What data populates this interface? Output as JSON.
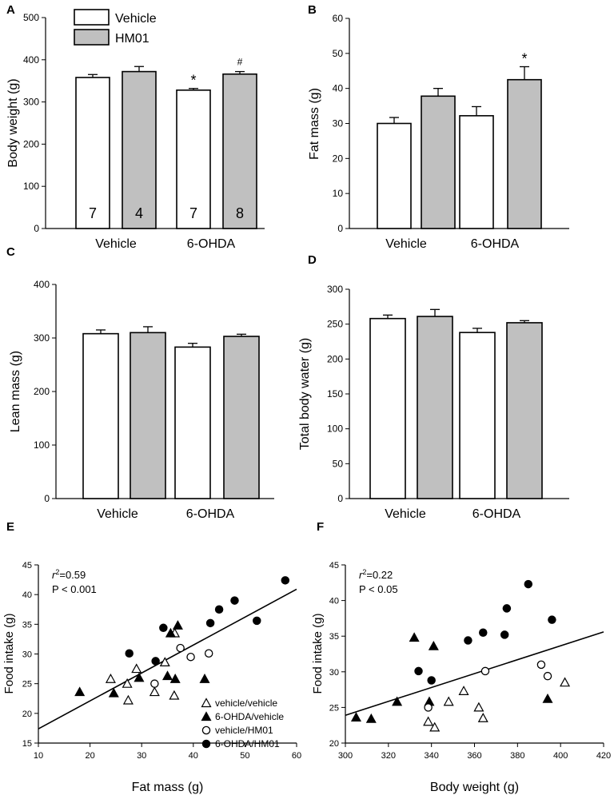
{
  "chart_data": [
    {
      "panel": "A",
      "type": "bar",
      "ylabel": "Body weight (g)",
      "ylim": [
        0,
        500
      ],
      "yticks": [
        0,
        100,
        200,
        300,
        400,
        500
      ],
      "groups": [
        "Vehicle",
        "6-OHDA"
      ],
      "series": [
        {
          "name": "Vehicle",
          "color": "#ffffff",
          "values": [
            358,
            328
          ],
          "errors": [
            7,
            4
          ],
          "n": [
            "7",
            "7"
          ]
        },
        {
          "name": "HM01",
          "color": "#c0c0c0",
          "values": [
            372,
            366
          ],
          "errors": [
            12,
            6
          ],
          "n": [
            "4",
            "8"
          ]
        }
      ],
      "annotations": [
        {
          "text": "*",
          "group": 1,
          "series": 0
        },
        {
          "text": "#",
          "group": 1,
          "series": 1
        }
      ],
      "legend": [
        "Vehicle",
        "HM01"
      ]
    },
    {
      "panel": "B",
      "type": "bar",
      "ylabel": "Fat mass (g)",
      "ylim": [
        0,
        60
      ],
      "yticks": [
        0,
        10,
        20,
        30,
        40,
        50,
        60
      ],
      "groups": [
        "Vehicle",
        "6-OHDA"
      ],
      "series": [
        {
          "name": "Vehicle",
          "color": "#ffffff",
          "values": [
            30,
            32.2
          ],
          "errors": [
            1.7,
            2.6
          ]
        },
        {
          "name": "HM01",
          "color": "#c0c0c0",
          "values": [
            37.8,
            42.5
          ],
          "errors": [
            2.2,
            3.7
          ]
        }
      ],
      "annotations": [
        {
          "text": "*",
          "group": 1,
          "series": 1
        }
      ]
    },
    {
      "panel": "C",
      "type": "bar",
      "ylabel": "Lean mass (g)",
      "ylim": [
        0,
        400
      ],
      "yticks": [
        0,
        100,
        200,
        300,
        400
      ],
      "groups": [
        "Vehicle",
        "6-OHDA"
      ],
      "series": [
        {
          "name": "Vehicle",
          "color": "#ffffff",
          "values": [
            308,
            283
          ],
          "errors": [
            7,
            7
          ]
        },
        {
          "name": "HM01",
          "color": "#c0c0c0",
          "values": [
            310,
            303
          ],
          "errors": [
            11,
            4
          ]
        }
      ]
    },
    {
      "panel": "D",
      "type": "bar",
      "ylabel": "Total body water (g)",
      "ylim": [
        0,
        300
      ],
      "yticks": [
        0,
        50,
        100,
        150,
        200,
        250,
        300
      ],
      "groups": [
        "Vehicle",
        "6-OHDA"
      ],
      "series": [
        {
          "name": "Vehicle",
          "color": "#ffffff",
          "values": [
            258,
            238
          ],
          "errors": [
            5,
            6
          ]
        },
        {
          "name": "HM01",
          "color": "#c0c0c0",
          "values": [
            261,
            252
          ],
          "errors": [
            10,
            3
          ]
        }
      ]
    },
    {
      "panel": "E",
      "type": "scatter",
      "xlabel": "Fat mass (g)",
      "ylabel": "Food intake (g)",
      "xlim": [
        10,
        60
      ],
      "ylim": [
        15,
        45
      ],
      "xticks": [
        10,
        20,
        30,
        40,
        50,
        60
      ],
      "yticks": [
        15,
        20,
        25,
        30,
        35,
        40,
        45
      ],
      "stat_r": "r",
      "stat_r_sup": "2",
      "stat_r_value": "=0.59",
      "stat_p": "P < 0.001",
      "fit_line": [
        [
          10,
          17.4
        ],
        [
          60,
          40.9
        ]
      ],
      "series": [
        {
          "name": "vehicle/vehicle",
          "marker": "triangle-open",
          "points": [
            [
              24,
              25.8
            ],
            [
              27.2,
              25
            ],
            [
              27.4,
              22.2
            ],
            [
              29,
              27.5
            ],
            [
              32.5,
              23.6
            ],
            [
              34.5,
              28.6
            ],
            [
              36.3,
              23
            ],
            [
              36.4,
              33.5
            ]
          ]
        },
        {
          "name": "6-OHDA/vehicle",
          "marker": "triangle-filled",
          "points": [
            [
              18,
              23.6
            ],
            [
              24.6,
              23.4
            ],
            [
              29.5,
              26
            ],
            [
              35,
              26.3
            ],
            [
              35.6,
              33.5
            ],
            [
              36.5,
              25.8
            ],
            [
              37,
              34.8
            ],
            [
              42.2,
              25.8
            ]
          ]
        },
        {
          "name": "vehicle/HM01",
          "marker": "circle-open",
          "points": [
            [
              32.5,
              25
            ],
            [
              37.5,
              31
            ],
            [
              39.5,
              29.5
            ],
            [
              43,
              30.1
            ]
          ]
        },
        {
          "name": "6-OHDA/HM01",
          "marker": "circle-filled",
          "points": [
            [
              27.6,
              30.1
            ],
            [
              32.7,
              28.8
            ],
            [
              34.2,
              34.4
            ],
            [
              43.3,
              35.2
            ],
            [
              45,
              37.5
            ],
            [
              48,
              39
            ],
            [
              52.3,
              35.6
            ],
            [
              57.8,
              42.4
            ]
          ]
        }
      ],
      "legend": [
        "vehicle/vehicle",
        "6-OHDA/vehicle",
        "vehicle/HM01",
        "6-OHDA/HM01"
      ]
    },
    {
      "panel": "F",
      "type": "scatter",
      "xlabel": "Body weight (g)",
      "ylabel": "Food intake (g)",
      "xlim": [
        300,
        420
      ],
      "ylim": [
        20,
        45
      ],
      "xticks": [
        300,
        320,
        340,
        360,
        380,
        400,
        420
      ],
      "yticks": [
        20,
        25,
        30,
        35,
        40,
        45
      ],
      "stat_r": "r",
      "stat_r_sup": "2",
      "stat_r_value": "=0.22",
      "stat_p": "P < 0.05",
      "fit_line": [
        [
          300,
          23.9
        ],
        [
          420,
          35.6
        ]
      ],
      "series": [
        {
          "name": "vehicle/vehicle",
          "marker": "triangle-open",
          "points": [
            [
              338.5,
              23
            ],
            [
              341.5,
              22.2
            ],
            [
              348,
              25.8
            ],
            [
              355,
              27.3
            ],
            [
              362,
              25
            ],
            [
              364,
              23.5
            ],
            [
              402,
              28.5
            ]
          ]
        },
        {
          "name": "6-OHDA/vehicle",
          "marker": "triangle-filled",
          "points": [
            [
              305,
              23.6
            ],
            [
              312,
              23.4
            ],
            [
              324,
              25.8
            ],
            [
              332,
              34.8
            ],
            [
              339,
              25.8
            ],
            [
              341,
              33.6
            ],
            [
              394,
              26.2
            ]
          ]
        },
        {
          "name": "vehicle/HM01",
          "marker": "circle-open",
          "points": [
            [
              338.5,
              25
            ],
            [
              365,
              30.1
            ],
            [
              391,
              31
            ],
            [
              394,
              29.4
            ]
          ]
        },
        {
          "name": "6-OHDA/HM01",
          "marker": "circle-filled",
          "points": [
            [
              334,
              30.1
            ],
            [
              340,
              28.8
            ],
            [
              357,
              34.4
            ],
            [
              364,
              35.5
            ],
            [
              374,
              35.2
            ],
            [
              375,
              38.9
            ],
            [
              385,
              42.3
            ],
            [
              396,
              37.3
            ]
          ]
        }
      ]
    }
  ]
}
